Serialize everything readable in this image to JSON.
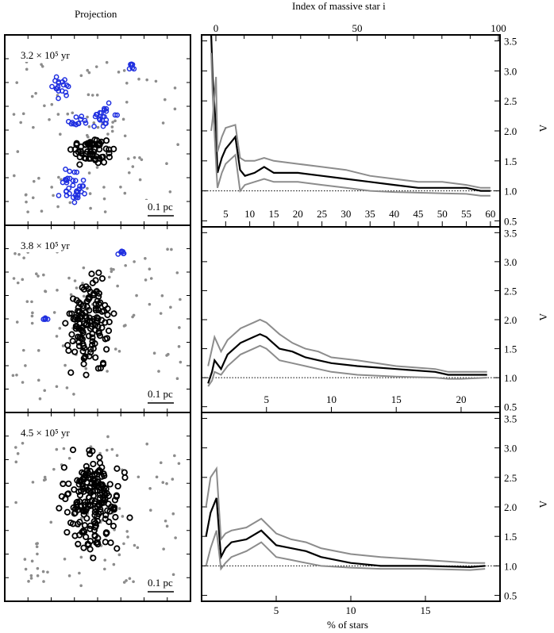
{
  "header": {
    "left_title": "Projection",
    "top_axis_label": "Index of massive star i",
    "top_axis_ticks": [
      0,
      50,
      100
    ],
    "bottom_axis_label": "% of stars"
  },
  "colors": {
    "subcluster": "#1f2fe0",
    "main_cluster": "#000000",
    "field": "#8c8c8c",
    "band": "#8c8c8c",
    "median": "#000000"
  },
  "panels": [
    {
      "time_label": "3.2 × 10⁵ yr",
      "scale_label": "0.1 pc"
    },
    {
      "time_label": "3.8 × 10⁵ yr",
      "scale_label": "0.1 pc"
    },
    {
      "time_label": "4.5 × 10⁵ yr",
      "scale_label": "0.1 pc"
    }
  ],
  "chart_data": [
    {
      "type": "line",
      "ylabel": "Λ",
      "ylim": [
        0.4,
        3.6
      ],
      "yticks": [
        0.5,
        1.0,
        1.5,
        2.0,
        2.5,
        3.0,
        3.5
      ],
      "xlim": [
        0,
        62
      ],
      "xticks": [
        5,
        10,
        15,
        20,
        25,
        30,
        35,
        40,
        45,
        50,
        55,
        60
      ],
      "reference_line": 1.0,
      "series": [
        {
          "role": "median",
          "x": [
            2,
            2.3,
            3,
            3.3,
            4.2,
            5,
            7,
            8,
            9,
            11,
            13,
            15,
            20,
            25,
            30,
            35,
            40,
            45,
            50,
            55,
            58,
            60
          ],
          "y": [
            3.6,
            2.9,
            2.0,
            1.3,
            1.55,
            1.7,
            1.9,
            1.35,
            1.25,
            1.3,
            1.4,
            1.3,
            1.3,
            1.25,
            1.2,
            1.15,
            1.1,
            1.05,
            1.05,
            1.05,
            1.0,
            1.0
          ]
        },
        {
          "role": "upper",
          "x": [
            2,
            2.3,
            3,
            3.3,
            4.2,
            5,
            7,
            8,
            9,
            11,
            13,
            15,
            20,
            25,
            30,
            35,
            40,
            45,
            50,
            55,
            58,
            60
          ],
          "y": [
            2.0,
            2.2,
            2.9,
            1.65,
            1.9,
            2.05,
            2.1,
            1.55,
            1.5,
            1.5,
            1.55,
            1.5,
            1.45,
            1.4,
            1.35,
            1.25,
            1.2,
            1.15,
            1.15,
            1.1,
            1.05,
            1.05
          ]
        },
        {
          "role": "lower",
          "x": [
            2,
            2.3,
            3,
            3.3,
            4.2,
            5,
            7,
            8,
            9,
            11,
            13,
            15,
            20,
            25,
            30,
            35,
            40,
            45,
            50,
            55,
            58,
            60
          ],
          "y": [
            3.3,
            2.6,
            1.45,
            1.05,
            1.3,
            1.45,
            1.6,
            1.0,
            1.1,
            1.15,
            1.2,
            1.15,
            1.15,
            1.1,
            1.05,
            1.0,
            0.98,
            0.97,
            0.96,
            0.95,
            0.92,
            0.92
          ]
        }
      ]
    },
    {
      "type": "line",
      "ylabel": "Λ",
      "ylim": [
        0.4,
        3.6
      ],
      "yticks": [
        0.5,
        1.0,
        1.5,
        2.0,
        2.5,
        3.0,
        3.5
      ],
      "xlim": [
        0,
        23
      ],
      "xticks": [
        5,
        10,
        15,
        20
      ],
      "reference_line": 1.0,
      "series": [
        {
          "role": "median",
          "x": [
            0.5,
            0.8,
            1.0,
            1.5,
            2,
            3,
            4,
            4.5,
            5,
            5.5,
            6,
            7,
            8,
            9,
            10,
            12,
            15,
            18,
            19,
            20,
            22
          ],
          "y": [
            0.9,
            1.1,
            1.3,
            1.15,
            1.4,
            1.6,
            1.7,
            1.75,
            1.7,
            1.6,
            1.5,
            1.45,
            1.35,
            1.3,
            1.25,
            1.2,
            1.15,
            1.1,
            1.05,
            1.05,
            1.05
          ]
        },
        {
          "role": "upper",
          "x": [
            0.5,
            0.8,
            1.0,
            1.5,
            2,
            3,
            4,
            4.5,
            5,
            5.5,
            6,
            7,
            8,
            9,
            10,
            12,
            15,
            18,
            19,
            20,
            22
          ],
          "y": [
            1.2,
            1.5,
            1.7,
            1.45,
            1.65,
            1.85,
            1.95,
            2.0,
            1.95,
            1.85,
            1.75,
            1.6,
            1.5,
            1.45,
            1.35,
            1.3,
            1.2,
            1.15,
            1.1,
            1.1,
            1.1
          ]
        },
        {
          "role": "lower",
          "x": [
            0.5,
            0.8,
            1.0,
            1.5,
            2,
            3,
            4,
            4.5,
            5,
            5.5,
            6,
            7,
            8,
            9,
            10,
            12,
            15,
            18,
            19,
            20,
            22
          ],
          "y": [
            0.85,
            0.95,
            1.1,
            1.05,
            1.2,
            1.4,
            1.5,
            1.55,
            1.5,
            1.4,
            1.3,
            1.25,
            1.2,
            1.15,
            1.1,
            1.05,
            1.02,
            1.0,
            0.98,
            0.98,
            1.0
          ]
        }
      ]
    },
    {
      "type": "line",
      "ylabel": "Λ",
      "ylim": [
        0.4,
        3.6
      ],
      "yticks": [
        0.5,
        1.0,
        1.5,
        2.0,
        2.5,
        3.0,
        3.5
      ],
      "xlim": [
        0,
        20
      ],
      "xticks": [
        5,
        10,
        15
      ],
      "reference_line": 1.0,
      "series": [
        {
          "role": "median",
          "x": [
            0.3,
            0.6,
            1.0,
            1.3,
            1.6,
            2,
            3,
            4,
            5,
            6,
            7,
            8,
            10,
            12,
            15,
            18,
            19
          ],
          "y": [
            1.5,
            1.9,
            2.15,
            1.15,
            1.3,
            1.4,
            1.45,
            1.6,
            1.35,
            1.3,
            1.25,
            1.15,
            1.05,
            1.0,
            1.0,
            0.98,
            1.0
          ]
        },
        {
          "role": "upper",
          "x": [
            0.3,
            0.6,
            1.0,
            1.3,
            1.6,
            2,
            3,
            4,
            5,
            6,
            7,
            8,
            10,
            12,
            15,
            18,
            19
          ],
          "y": [
            2.0,
            2.5,
            2.65,
            1.45,
            1.55,
            1.6,
            1.65,
            1.8,
            1.55,
            1.45,
            1.4,
            1.3,
            1.2,
            1.15,
            1.1,
            1.05,
            1.05
          ]
        },
        {
          "role": "lower",
          "x": [
            0.3,
            0.6,
            1.0,
            1.3,
            1.6,
            2,
            3,
            4,
            5,
            6,
            7,
            8,
            10,
            12,
            15,
            18,
            19
          ],
          "y": [
            1.0,
            1.3,
            1.6,
            0.95,
            1.05,
            1.15,
            1.25,
            1.4,
            1.15,
            1.1,
            1.05,
            1.0,
            0.97,
            0.95,
            0.95,
            0.93,
            0.95
          ]
        }
      ]
    }
  ]
}
